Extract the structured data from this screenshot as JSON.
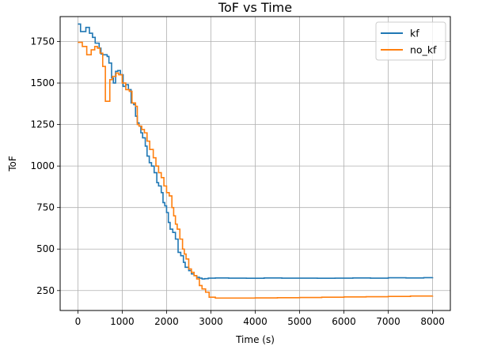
{
  "chart_data": {
    "type": "line",
    "title": "ToF vs Time",
    "xlabel": "Time (s)",
    "ylabel": "ToF",
    "xlim": [
      -400,
      8400
    ],
    "ylim": [
      130,
      1900
    ],
    "xticks": [
      0,
      1000,
      2000,
      3000,
      4000,
      5000,
      6000,
      7000,
      8000
    ],
    "yticks": [
      250,
      500,
      750,
      1000,
      1250,
      1500,
      1750
    ],
    "grid": true,
    "legend_position": "top-right",
    "series": [
      {
        "name": "kf",
        "color": "#1f77b4",
        "step": true,
        "x": [
          0,
          60,
          180,
          260,
          330,
          390,
          480,
          520,
          560,
          600,
          660,
          700,
          760,
          800,
          850,
          900,
          960,
          1020,
          1080,
          1140,
          1200,
          1260,
          1300,
          1340,
          1380,
          1420,
          1460,
          1520,
          1560,
          1610,
          1660,
          1720,
          1780,
          1820,
          1880,
          1920,
          1960,
          2000,
          2040,
          2080,
          2140,
          2200,
          2260,
          2320,
          2380,
          2420,
          2500,
          2560,
          2620,
          2680,
          2740,
          2800,
          2860,
          2940,
          3100,
          3400,
          3800,
          4200,
          4600,
          5000,
          5400,
          5800,
          6200,
          6600,
          7000,
          7400,
          7800,
          8000
        ],
        "y": [
          1855,
          1810,
          1835,
          1800,
          1775,
          1740,
          1710,
          1675,
          1670,
          1670,
          1660,
          1620,
          1530,
          1500,
          1570,
          1575,
          1550,
          1480,
          1490,
          1460,
          1380,
          1370,
          1300,
          1260,
          1240,
          1200,
          1170,
          1120,
          1060,
          1020,
          1000,
          960,
          900,
          880,
          840,
          780,
          760,
          720,
          660,
          620,
          600,
          560,
          480,
          460,
          420,
          390,
          370,
          350,
          340,
          330,
          325,
          320,
          322,
          325,
          326,
          325,
          324,
          326,
          325,
          325,
          324,
          325,
          326,
          325,
          327,
          326,
          328,
          329
        ]
      },
      {
        "name": "no_kf",
        "color": "#ff7f0e",
        "step": true,
        "x": [
          0,
          100,
          200,
          300,
          380,
          440,
          500,
          560,
          620,
          720,
          780,
          860,
          920,
          1000,
          1080,
          1160,
          1220,
          1300,
          1340,
          1380,
          1440,
          1500,
          1560,
          1620,
          1700,
          1760,
          1820,
          1880,
          1940,
          2000,
          2060,
          2120,
          2160,
          2200,
          2240,
          2300,
          2360,
          2400,
          2440,
          2500,
          2560,
          2620,
          2680,
          2740,
          2800,
          2880,
          2960,
          3100,
          3500,
          4000,
          4500,
          5000,
          5500,
          6000,
          6500,
          7000,
          7500,
          8000
        ],
        "y": [
          1745,
          1720,
          1670,
          1700,
          1720,
          1710,
          1680,
          1600,
          1390,
          1520,
          1540,
          1560,
          1550,
          1500,
          1460,
          1450,
          1380,
          1360,
          1250,
          1240,
          1220,
          1200,
          1150,
          1100,
          1050,
          1000,
          960,
          930,
          880,
          840,
          820,
          750,
          700,
          650,
          620,
          560,
          500,
          470,
          440,
          380,
          360,
          340,
          320,
          280,
          260,
          240,
          210,
          205,
          205,
          206,
          207,
          208,
          210,
          212,
          213,
          215,
          217,
          218
        ]
      }
    ]
  }
}
